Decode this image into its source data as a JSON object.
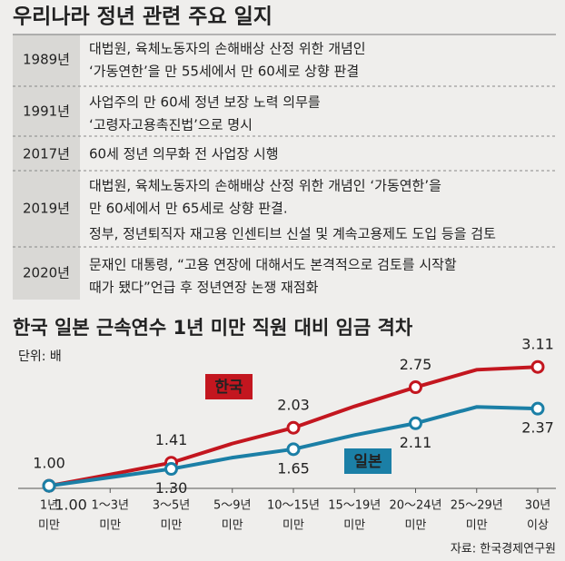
{
  "timeline": {
    "title": "우리나라 정년 관련 주요 일지",
    "rows": [
      {
        "year": "1989년",
        "lines": [
          "대법원, 육체노동자의 손해배상 산정 위한 개념인",
          "‘가동연한’을 만 55세에서 만 60세로 상향 판결"
        ]
      },
      {
        "year": "1991년",
        "lines": [
          "사업주의 만 60세 정년 보장 노력 의무를",
          "‘고령자고용촉진법’으로 명시"
        ]
      },
      {
        "year": "2017년",
        "lines": [
          "60세 정년 의무화 전 사업장 시행"
        ]
      },
      {
        "year": "2019년",
        "lines": [
          "대법원, 육체노동자의 손해배상 산정 위한 개념인 ‘가동연한’을",
          "만 60세에서 만 65세로 상향 판결.",
          "정부, 정년퇴직자 재고용 인센티브 신설 및 계속고용제도 도입 등을 검토"
        ]
      },
      {
        "year": "2020년",
        "lines": [
          "문재인 대통령, “고용 연장에 대해서도 본격적으로 검토를 시작할",
          "때가 됐다”언급 후 정년연장 논쟁 재점화"
        ]
      }
    ]
  },
  "chart_data": {
    "type": "line",
    "title": "한국  일본 근속연수 1년 미만 직원 대비 임금 격차",
    "unit": "단위: 배",
    "categories": [
      [
        "1년",
        "미만"
      ],
      [
        "1～3년",
        "미만"
      ],
      [
        "3～5년",
        "미만"
      ],
      [
        "5～9년",
        "미만"
      ],
      [
        "10～15년",
        "미만"
      ],
      [
        "15～19년",
        "미만"
      ],
      [
        "20～24년",
        "미만"
      ],
      [
        "25～29년",
        "미만"
      ],
      [
        "30년",
        "이상"
      ]
    ],
    "series": [
      {
        "name": "한국",
        "color": "#c3161f",
        "values": [
          1.0,
          1.2,
          1.41,
          1.75,
          2.03,
          2.41,
          2.75,
          3.06,
          3.11
        ],
        "value_labels": [
          "1.00",
          null,
          "1.41",
          null,
          "2.03",
          null,
          "2.75",
          null,
          "3.11"
        ]
      },
      {
        "name": "일본",
        "color": "#1b7fa6",
        "values": [
          1.0,
          1.15,
          1.3,
          1.5,
          1.65,
          1.9,
          2.11,
          2.4,
          2.37
        ],
        "value_labels": [
          "1.00",
          null,
          "1.30",
          null,
          "1.65",
          null,
          "2.11",
          null,
          "2.37"
        ]
      }
    ],
    "ylim": [
      0.6,
      3.5
    ],
    "source": "자료: 한국경제연구원"
  }
}
